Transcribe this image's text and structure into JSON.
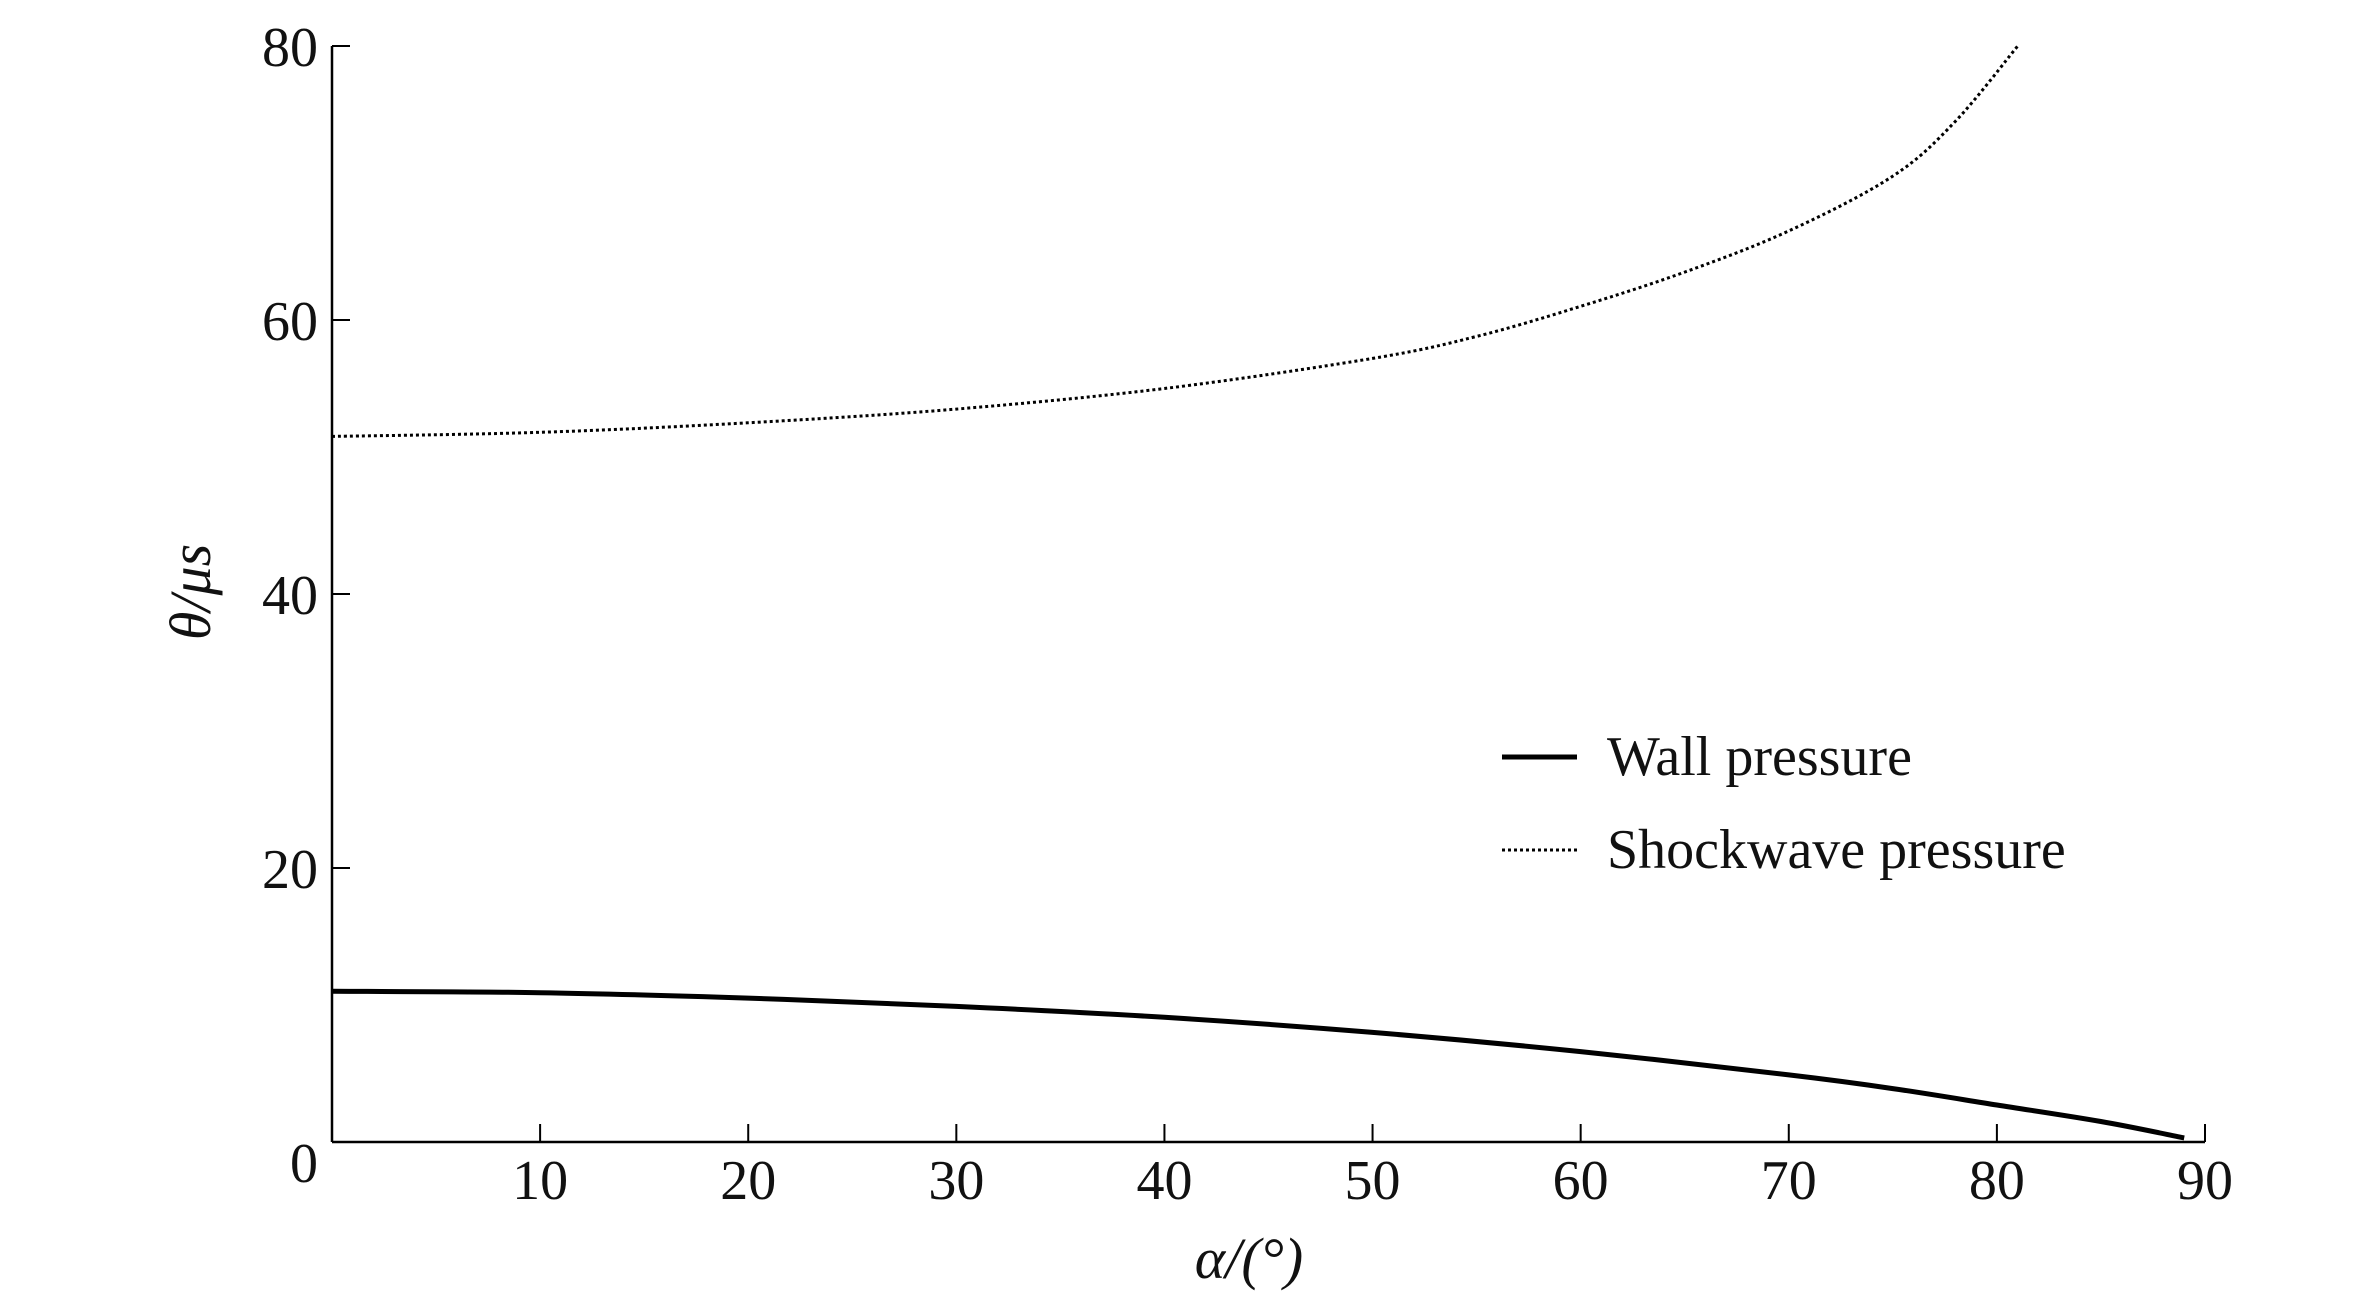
{
  "chart_data": {
    "type": "line",
    "title": "",
    "xlabel": "α/(°)",
    "ylabel": "θ/μs",
    "xlim": [
      0,
      90
    ],
    "ylim": [
      0,
      80
    ],
    "x_ticks": [
      0,
      10,
      20,
      30,
      40,
      50,
      60,
      70,
      80,
      90
    ],
    "x_tick_labels": [
      "",
      "10",
      "20",
      "30",
      "40",
      "50",
      "60",
      "70",
      "80",
      "90"
    ],
    "y_ticks": [
      0,
      20,
      40,
      60,
      80
    ],
    "y_tick_labels": [
      "0",
      "20",
      "40",
      "60",
      "80"
    ],
    "grid": false,
    "legend_position": "center-right",
    "series": [
      {
        "name": "Wall pressure",
        "style": "solid",
        "color": "#000000",
        "x": [
          0,
          10,
          20,
          30,
          40,
          50,
          60,
          70,
          75,
          80,
          85,
          89
        ],
        "y": [
          11.0,
          10.9,
          10.5,
          9.9,
          9.1,
          8.0,
          6.6,
          4.9,
          3.9,
          2.7,
          1.5,
          0.3
        ]
      },
      {
        "name": "Shockwave pressure",
        "style": "dotted",
        "color": "#000000",
        "x": [
          0,
          10,
          20,
          30,
          40,
          50,
          55,
          60,
          65,
          70,
          75,
          78,
          81
        ],
        "y": [
          51.5,
          51.8,
          52.5,
          53.5,
          55.0,
          57.2,
          58.8,
          61.0,
          63.5,
          66.5,
          70.5,
          74.5,
          80.0
        ]
      }
    ]
  }
}
